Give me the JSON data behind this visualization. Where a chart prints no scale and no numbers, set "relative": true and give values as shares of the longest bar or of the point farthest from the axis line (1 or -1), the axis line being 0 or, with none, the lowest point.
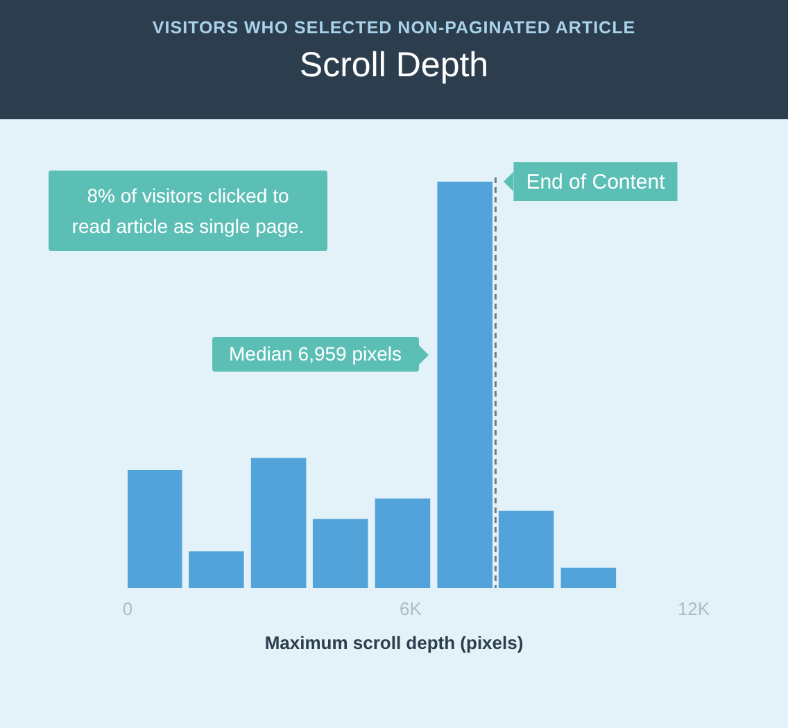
{
  "chart_data": {
    "type": "bar",
    "title": "Scroll Depth",
    "subtitle": "VISITORS WHO SELECTED NON-PAGINATED ARTICLE",
    "xlabel": "Maximum scroll depth (pixels)",
    "x": [
      570,
      1880,
      3200,
      4510,
      5830,
      7150,
      8450,
      9770
    ],
    "values": [
      0.29,
      0.09,
      0.32,
      0.17,
      0.22,
      1,
      0.19,
      0.05
    ],
    "color": "#52a3da",
    "relative": true,
    "xlim": [
      0,
      12000
    ],
    "xticks": [
      {
        "value": 0,
        "label": "0"
      },
      {
        "value": 6000,
        "label": "6K"
      },
      {
        "value": 12000,
        "label": "12K"
      }
    ],
    "ref_lines": [
      {
        "axis": "x",
        "value": 7800,
        "label": "End of Content",
        "line_style": "dashed",
        "color": "#6b7b86"
      }
    ],
    "annotations": [
      "8% of visitors clicked to read article as single page.",
      "Median 6,959 pixels"
    ]
  }
}
